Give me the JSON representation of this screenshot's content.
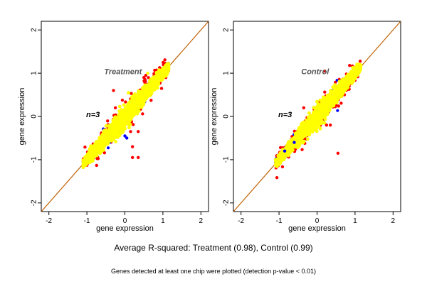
{
  "chart_data": [
    {
      "type": "scatter",
      "title": "",
      "annotation_title": "Treatment",
      "annotation_n": "n=3",
      "xlabel": "gene expression",
      "ylabel": "gene expression",
      "xlim": [
        -2.2,
        2.2
      ],
      "ylim": [
        -2.2,
        2.2
      ],
      "xticks": [
        -2,
        -1,
        0,
        1,
        2
      ],
      "yticks": [
        -2,
        -1,
        0,
        1,
        2
      ],
      "tick_labels": [
        "-2",
        "-1",
        "0",
        "1",
        "2"
      ],
      "grid": false,
      "diagonal_line": {
        "from": [
          -2.2,
          -2.2
        ],
        "to": [
          2.2,
          2.2
        ],
        "color": "#c06000"
      },
      "point_cloud": {
        "x_range": [
          -1.1,
          1.15
        ],
        "spread": 0.09,
        "colors": {
          "main": "#ffff00",
          "secondary": "#ff0000",
          "tertiary": "#0000ff"
        }
      },
      "outliers": [
        {
          "x": -0.25,
          "y": 0.2,
          "color": "#ff0000"
        },
        {
          "x": 0.15,
          "y": -0.35,
          "color": "#ff0000"
        },
        {
          "x": 0.2,
          "y": -0.7,
          "color": "#ff0000"
        },
        {
          "x": 0.2,
          "y": -0.95,
          "color": "#ff0000"
        },
        {
          "x": 0.35,
          "y": -0.95,
          "color": "#ff0000"
        },
        {
          "x": 0.35,
          "y": -0.35,
          "color": "#ff0000"
        },
        {
          "x": 0.0,
          "y": -0.45,
          "color": "#0000ff"
        },
        {
          "x": 0.05,
          "y": -0.5,
          "color": "#0000ff"
        },
        {
          "x": -0.3,
          "y": 0.6,
          "color": "#ff0000"
        },
        {
          "x": 0.5,
          "y": 0.9,
          "color": "#ff0000"
        },
        {
          "x": 0.55,
          "y": 0.95,
          "color": "#ff0000"
        },
        {
          "x": 0.6,
          "y": 1.0,
          "color": "#ffff00"
        }
      ]
    },
    {
      "type": "scatter",
      "title": "",
      "annotation_title": "Control",
      "annotation_n": "n=3",
      "xlabel": "gene expression",
      "ylabel": "gene expression",
      "xlim": [
        -2.2,
        2.2
      ],
      "ylim": [
        -2.2,
        2.2
      ],
      "xticks": [
        -2,
        -1,
        0,
        1,
        2
      ],
      "yticks": [
        -2,
        -1,
        0,
        1,
        2
      ],
      "tick_labels": [
        "-2",
        "-1",
        "0",
        "1",
        "2"
      ],
      "grid": false,
      "diagonal_line": {
        "from": [
          -2.2,
          -2.2
        ],
        "to": [
          2.2,
          2.2
        ],
        "color": "#c06000"
      },
      "point_cloud": {
        "x_range": [
          -1.1,
          1.15
        ],
        "spread": 0.085,
        "colors": {
          "main": "#ffff00",
          "secondary": "#ff0000",
          "tertiary": "#0000ff"
        }
      },
      "outliers": [
        {
          "x": -0.35,
          "y": 0.2,
          "color": "#ff0000"
        },
        {
          "x": 0.35,
          "y": -0.2,
          "color": "#ff0000"
        },
        {
          "x": 0.55,
          "y": -0.85,
          "color": "#ff0000"
        },
        {
          "x": 0.25,
          "y": -0.2,
          "color": "#ff0000"
        },
        {
          "x": -0.6,
          "y": -0.6,
          "color": "#0000ff"
        },
        {
          "x": -0.85,
          "y": -0.8,
          "color": "#0000ff"
        },
        {
          "x": 0.2,
          "y": 1.05,
          "color": "#ff0000"
        },
        {
          "x": 0.55,
          "y": 0.7,
          "color": "#ffff00"
        },
        {
          "x": 0.6,
          "y": 0.75,
          "color": "#ffff00"
        }
      ]
    }
  ],
  "caption_main": "Average R-squared: Treatment (0.98), Control (0.99)",
  "caption_sub": "Genes detected at least one chip were plotted (detection p-value < 0.01)"
}
